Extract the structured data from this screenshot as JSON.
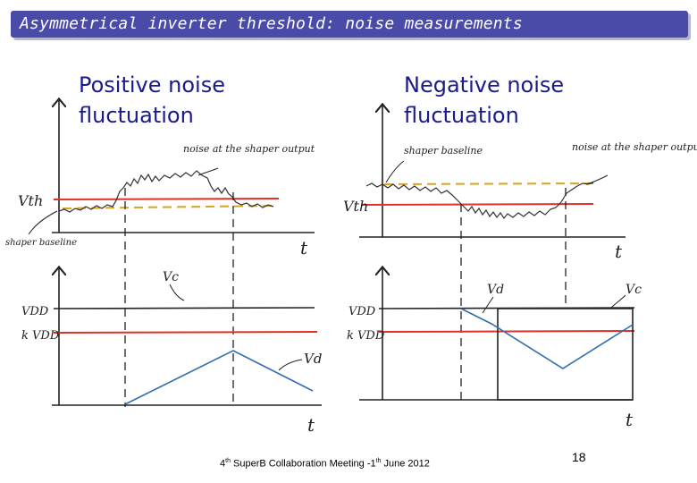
{
  "title": "Asymmetrical inverter threshold: noise measurements",
  "left_panel": {
    "heading_line1": "Positive noise",
    "heading_line2": "fluctuation",
    "labels": {
      "vth": "Vth",
      "shaper_baseline": "shaper baseline",
      "noise_note": "noise at the shaper output",
      "t_top": "t",
      "vc": "Vc",
      "vdd": "VDD",
      "kvdd": "k VDD",
      "vd": "Vd",
      "t_bottom": "t"
    }
  },
  "right_panel": {
    "heading_line1": "Negative noise",
    "heading_line2": "fluctuation",
    "labels": {
      "vth": "Vth",
      "shaper_baseline": "shaper baseline",
      "noise_note": "noise at the shaper output",
      "t_top": "t",
      "vd": "Vd",
      "vc": "Vc",
      "vdd": "VDD",
      "kvdd": "k VDD",
      "t_bottom": "t"
    }
  },
  "footer": {
    "prefix": "4",
    "sup1": "th",
    "middle": " SuperB Collaboration Meeting -1",
    "sup2": "th",
    "suffix": " June 2012"
  },
  "page_number": "18",
  "colors": {
    "title_bg": "#4a4ba8",
    "heading": "#1a1a8c",
    "threshold_red": "#e0302a",
    "baseline_orange": "#e0a020",
    "ramp_blue": "#2f6fb0"
  }
}
